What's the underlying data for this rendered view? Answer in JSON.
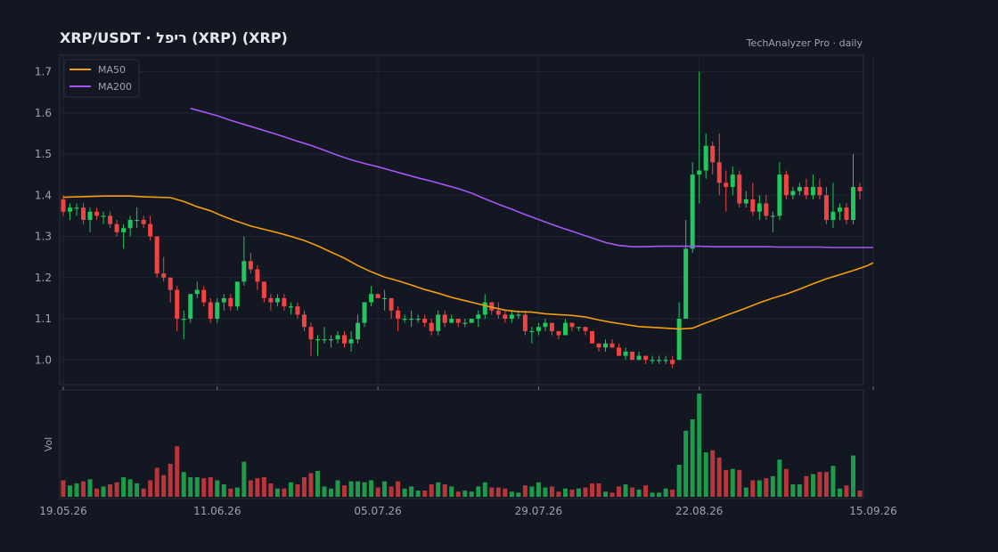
{
  "title": "XRP/USDT  ·  ריפל (XRP) (XRP)",
  "source": "TechAnalyzer Pro · daily",
  "legend": [
    {
      "label": "MA50",
      "color": "#f59e0b"
    },
    {
      "label": "MA200",
      "color": "#a855f7"
    }
  ],
  "colors": {
    "background": "#131722",
    "up": "#22c55e",
    "down": "#ef4444",
    "grid": "#1f2535",
    "text": "#9ca3af",
    "title": "#e5e7eb"
  },
  "chart_data": {
    "type": "candlestick",
    "price_axis": {
      "ylim": [
        0.94,
        1.74
      ],
      "ticks": [
        1.0,
        1.1,
        1.2,
        1.3,
        1.4,
        1.5,
        1.6,
        1.7
      ]
    },
    "volume_axis": {
      "label": "Vol",
      "ylim": [
        0,
        1
      ]
    },
    "x_ticks": [
      "19.05.26",
      "11.06.26",
      "05.07.26",
      "29.07.26",
      "22.08.26",
      "15.09.26"
    ],
    "ohlcv": [
      [
        1.39,
        1.4,
        1.35,
        1.36,
        0.16
      ],
      [
        1.36,
        1.38,
        1.34,
        1.37,
        0.11
      ],
      [
        1.37,
        1.38,
        1.35,
        1.37,
        0.13
      ],
      [
        1.37,
        1.38,
        1.33,
        1.34,
        0.15
      ],
      [
        1.34,
        1.37,
        1.31,
        1.36,
        0.17
      ],
      [
        1.36,
        1.37,
        1.34,
        1.35,
        0.08
      ],
      [
        1.35,
        1.36,
        1.33,
        1.35,
        0.1
      ],
      [
        1.35,
        1.36,
        1.32,
        1.33,
        0.12
      ],
      [
        1.33,
        1.34,
        1.3,
        1.31,
        0.14
      ],
      [
        1.31,
        1.33,
        1.27,
        1.32,
        0.19
      ],
      [
        1.32,
        1.35,
        1.3,
        1.34,
        0.17
      ],
      [
        1.34,
        1.37,
        1.32,
        1.34,
        0.13
      ],
      [
        1.34,
        1.35,
        1.32,
        1.33,
        0.08
      ],
      [
        1.33,
        1.35,
        1.29,
        1.3,
        0.16
      ],
      [
        1.3,
        1.3,
        1.2,
        1.21,
        0.28
      ],
      [
        1.21,
        1.25,
        1.19,
        1.2,
        0.21
      ],
      [
        1.2,
        1.2,
        1.14,
        1.17,
        0.32
      ],
      [
        1.17,
        1.18,
        1.07,
        1.1,
        0.49
      ],
      [
        1.1,
        1.12,
        1.05,
        1.1,
        0.24
      ],
      [
        1.1,
        1.16,
        1.09,
        1.16,
        0.19
      ],
      [
        1.16,
        1.19,
        1.15,
        1.17,
        0.19
      ],
      [
        1.17,
        1.18,
        1.13,
        1.14,
        0.18
      ],
      [
        1.14,
        1.15,
        1.09,
        1.1,
        0.19
      ],
      [
        1.1,
        1.15,
        1.09,
        1.14,
        0.16
      ],
      [
        1.14,
        1.16,
        1.12,
        1.15,
        0.12
      ],
      [
        1.15,
        1.16,
        1.12,
        1.13,
        0.08
      ],
      [
        1.13,
        1.19,
        1.12,
        1.19,
        0.09
      ],
      [
        1.19,
        1.3,
        1.18,
        1.24,
        0.34
      ],
      [
        1.24,
        1.26,
        1.21,
        1.22,
        0.16
      ],
      [
        1.22,
        1.23,
        1.17,
        1.19,
        0.18
      ],
      [
        1.19,
        1.19,
        1.14,
        1.15,
        0.19
      ],
      [
        1.15,
        1.16,
        1.12,
        1.14,
        0.13
      ],
      [
        1.14,
        1.16,
        1.13,
        1.15,
        0.08
      ],
      [
        1.15,
        1.16,
        1.12,
        1.13,
        0.08
      ],
      [
        1.13,
        1.14,
        1.11,
        1.13,
        0.14
      ],
      [
        1.13,
        1.14,
        1.1,
        1.11,
        0.12
      ],
      [
        1.11,
        1.12,
        1.07,
        1.08,
        0.19
      ],
      [
        1.08,
        1.09,
        1.01,
        1.05,
        0.23
      ],
      [
        1.05,
        1.06,
        1.01,
        1.05,
        0.25
      ],
      [
        1.05,
        1.08,
        1.04,
        1.05,
        0.1
      ],
      [
        1.05,
        1.06,
        1.03,
        1.05,
        0.08
      ],
      [
        1.05,
        1.07,
        1.04,
        1.06,
        0.16
      ],
      [
        1.06,
        1.07,
        1.03,
        1.04,
        0.11
      ],
      [
        1.04,
        1.07,
        1.02,
        1.05,
        0.15
      ],
      [
        1.05,
        1.11,
        1.04,
        1.09,
        0.15
      ],
      [
        1.09,
        1.14,
        1.08,
        1.14,
        0.14
      ],
      [
        1.14,
        1.18,
        1.13,
        1.16,
        0.16
      ],
      [
        1.16,
        1.16,
        1.15,
        1.15,
        0.09
      ],
      [
        1.15,
        1.17,
        1.12,
        1.15,
        0.15
      ],
      [
        1.15,
        1.15,
        1.1,
        1.12,
        0.1
      ],
      [
        1.12,
        1.13,
        1.07,
        1.1,
        0.15
      ],
      [
        1.1,
        1.11,
        1.09,
        1.1,
        0.08
      ],
      [
        1.1,
        1.12,
        1.08,
        1.1,
        0.1
      ],
      [
        1.1,
        1.11,
        1.09,
        1.1,
        0.06
      ],
      [
        1.1,
        1.11,
        1.08,
        1.09,
        0.06
      ],
      [
        1.09,
        1.1,
        1.06,
        1.07,
        0.12
      ],
      [
        1.07,
        1.12,
        1.06,
        1.11,
        0.14
      ],
      [
        1.11,
        1.12,
        1.08,
        1.09,
        0.12
      ],
      [
        1.09,
        1.11,
        1.09,
        1.1,
        0.1
      ],
      [
        1.1,
        1.1,
        1.08,
        1.09,
        0.05
      ],
      [
        1.09,
        1.1,
        1.08,
        1.09,
        0.06
      ],
      [
        1.09,
        1.1,
        1.09,
        1.1,
        0.05
      ],
      [
        1.1,
        1.12,
        1.08,
        1.11,
        0.1
      ],
      [
        1.11,
        1.16,
        1.1,
        1.14,
        0.14
      ],
      [
        1.14,
        1.14,
        1.11,
        1.12,
        0.09
      ],
      [
        1.12,
        1.14,
        1.1,
        1.11,
        0.09
      ],
      [
        1.11,
        1.12,
        1.09,
        1.1,
        0.08
      ],
      [
        1.1,
        1.12,
        1.09,
        1.11,
        0.05
      ],
      [
        1.11,
        1.12,
        1.1,
        1.11,
        0.04
      ],
      [
        1.11,
        1.12,
        1.06,
        1.07,
        0.11
      ],
      [
        1.07,
        1.08,
        1.04,
        1.07,
        0.1
      ],
      [
        1.07,
        1.09,
        1.06,
        1.08,
        0.14
      ],
      [
        1.08,
        1.1,
        1.07,
        1.09,
        0.09
      ],
      [
        1.09,
        1.09,
        1.06,
        1.07,
        0.1
      ],
      [
        1.07,
        1.07,
        1.05,
        1.06,
        0.05
      ],
      [
        1.06,
        1.1,
        1.06,
        1.09,
        0.08
      ],
      [
        1.09,
        1.09,
        1.07,
        1.08,
        0.07
      ],
      [
        1.08,
        1.08,
        1.07,
        1.08,
        0.08
      ],
      [
        1.08,
        1.08,
        1.06,
        1.07,
        0.09
      ],
      [
        1.07,
        1.07,
        1.04,
        1.04,
        0.13
      ],
      [
        1.04,
        1.04,
        1.02,
        1.03,
        0.13
      ],
      [
        1.03,
        1.05,
        1.02,
        1.04,
        0.05
      ],
      [
        1.04,
        1.05,
        1.03,
        1.03,
        0.04
      ],
      [
        1.03,
        1.04,
        1.01,
        1.01,
        0.1
      ],
      [
        1.01,
        1.03,
        1.0,
        1.02,
        0.12
      ],
      [
        1.02,
        1.02,
        1.0,
        1.0,
        0.09
      ],
      [
        1.0,
        1.02,
        1.0,
        1.01,
        0.07
      ],
      [
        1.01,
        1.01,
        0.99,
        1.0,
        0.11
      ],
      [
        1.0,
        1.01,
        0.99,
        1.0,
        0.04
      ],
      [
        1.0,
        1.01,
        0.99,
        1.0,
        0.04
      ],
      [
        1.0,
        1.01,
        0.99,
        1.0,
        0.08
      ],
      [
        1.0,
        1.01,
        0.98,
        0.99,
        0.07
      ],
      [
        1.0,
        1.14,
        1.0,
        1.1,
        0.31
      ],
      [
        1.1,
        1.34,
        1.1,
        1.27,
        0.64
      ],
      [
        1.27,
        1.48,
        1.26,
        1.45,
        0.75
      ],
      [
        1.45,
        1.7,
        1.38,
        1.46,
        1.0
      ],
      [
        1.46,
        1.55,
        1.44,
        1.52,
        0.43
      ],
      [
        1.52,
        1.53,
        1.45,
        1.48,
        0.45
      ],
      [
        1.48,
        1.55,
        1.4,
        1.43,
        0.38
      ],
      [
        1.43,
        1.46,
        1.36,
        1.42,
        0.26
      ],
      [
        1.42,
        1.47,
        1.4,
        1.45,
        0.27
      ],
      [
        1.45,
        1.46,
        1.37,
        1.38,
        0.26
      ],
      [
        1.38,
        1.41,
        1.37,
        1.39,
        0.09
      ],
      [
        1.39,
        1.43,
        1.35,
        1.36,
        0.16
      ],
      [
        1.36,
        1.4,
        1.34,
        1.38,
        0.16
      ],
      [
        1.38,
        1.4,
        1.34,
        1.35,
        0.18
      ],
      [
        1.35,
        1.36,
        1.31,
        1.35,
        0.2
      ],
      [
        1.35,
        1.48,
        1.34,
        1.45,
        0.36
      ],
      [
        1.45,
        1.46,
        1.39,
        1.4,
        0.27
      ],
      [
        1.4,
        1.42,
        1.39,
        1.41,
        0.12
      ],
      [
        1.41,
        1.43,
        1.4,
        1.42,
        0.12
      ],
      [
        1.42,
        1.44,
        1.39,
        1.4,
        0.2
      ],
      [
        1.4,
        1.45,
        1.39,
        1.42,
        0.22
      ],
      [
        1.42,
        1.44,
        1.39,
        1.4,
        0.24
      ],
      [
        1.4,
        1.42,
        1.33,
        1.34,
        0.24
      ],
      [
        1.34,
        1.43,
        1.32,
        1.36,
        0.3
      ],
      [
        1.36,
        1.38,
        1.34,
        1.37,
        0.08
      ],
      [
        1.37,
        1.38,
        1.33,
        1.34,
        0.11
      ],
      [
        1.34,
        1.5,
        1.33,
        1.42,
        0.4
      ],
      [
        1.42,
        1.43,
        1.39,
        1.41,
        0.06
      ]
    ],
    "ma50": [
      [
        0,
        1.395
      ],
      [
        6,
        1.398
      ],
      [
        10,
        1.398
      ],
      [
        12,
        1.396
      ],
      [
        16,
        1.394
      ],
      [
        18,
        1.385
      ],
      [
        20,
        1.372
      ],
      [
        22,
        1.362
      ],
      [
        24,
        1.348
      ],
      [
        26,
        1.336
      ],
      [
        28,
        1.325
      ],
      [
        30,
        1.317
      ],
      [
        32,
        1.309
      ],
      [
        34,
        1.3
      ],
      [
        36,
        1.29
      ],
      [
        38,
        1.277
      ],
      [
        40,
        1.262
      ],
      [
        42,
        1.247
      ],
      [
        44,
        1.229
      ],
      [
        46,
        1.214
      ],
      [
        48,
        1.201
      ],
      [
        50,
        1.192
      ],
      [
        52,
        1.182
      ],
      [
        54,
        1.171
      ],
      [
        56,
        1.162
      ],
      [
        58,
        1.152
      ],
      [
        60,
        1.144
      ],
      [
        62,
        1.136
      ],
      [
        64,
        1.128
      ],
      [
        66,
        1.121
      ],
      [
        68,
        1.117
      ],
      [
        70,
        1.116
      ],
      [
        72,
        1.112
      ],
      [
        74,
        1.11
      ],
      [
        76,
        1.108
      ],
      [
        78,
        1.104
      ],
      [
        80,
        1.097
      ],
      [
        82,
        1.091
      ],
      [
        84,
        1.086
      ],
      [
        86,
        1.081
      ],
      [
        88,
        1.079
      ],
      [
        90,
        1.077
      ],
      [
        92,
        1.075
      ],
      [
        94,
        1.077
      ],
      [
        96,
        1.09
      ],
      [
        98,
        1.102
      ],
      [
        100,
        1.114
      ],
      [
        102,
        1.126
      ],
      [
        104,
        1.139
      ],
      [
        106,
        1.15
      ],
      [
        108,
        1.16
      ],
      [
        110,
        1.172
      ],
      [
        112,
        1.185
      ],
      [
        114,
        1.197
      ],
      [
        116,
        1.207
      ],
      [
        118,
        1.217
      ],
      [
        120,
        1.228
      ],
      [
        121,
        1.236
      ]
    ],
    "ma200": [
      [
        19,
        1.611
      ],
      [
        21,
        1.602
      ],
      [
        23,
        1.593
      ],
      [
        25,
        1.582
      ],
      [
        27,
        1.572
      ],
      [
        29,
        1.562
      ],
      [
        31,
        1.552
      ],
      [
        33,
        1.542
      ],
      [
        35,
        1.531
      ],
      [
        37,
        1.521
      ],
      [
        39,
        1.509
      ],
      [
        41,
        1.497
      ],
      [
        43,
        1.486
      ],
      [
        45,
        1.477
      ],
      [
        47,
        1.469
      ],
      [
        49,
        1.46
      ],
      [
        51,
        1.451
      ],
      [
        53,
        1.442
      ],
      [
        55,
        1.434
      ],
      [
        57,
        1.425
      ],
      [
        59,
        1.416
      ],
      [
        61,
        1.405
      ],
      [
        63,
        1.391
      ],
      [
        65,
        1.378
      ],
      [
        67,
        1.366
      ],
      [
        69,
        1.353
      ],
      [
        71,
        1.341
      ],
      [
        73,
        1.329
      ],
      [
        75,
        1.318
      ],
      [
        77,
        1.307
      ],
      [
        79,
        1.296
      ],
      [
        81,
        1.285
      ],
      [
        83,
        1.278
      ],
      [
        85,
        1.275
      ],
      [
        87,
        1.275
      ],
      [
        89,
        1.276
      ],
      [
        91,
        1.276
      ],
      [
        93,
        1.276
      ],
      [
        95,
        1.276
      ],
      [
        97,
        1.275
      ],
      [
        99,
        1.275
      ],
      [
        101,
        1.275
      ],
      [
        103,
        1.275
      ],
      [
        105,
        1.275
      ],
      [
        107,
        1.274
      ],
      [
        109,
        1.274
      ],
      [
        111,
        1.274
      ],
      [
        113,
        1.274
      ],
      [
        115,
        1.273
      ],
      [
        117,
        1.273
      ],
      [
        119,
        1.273
      ],
      [
        121,
        1.273
      ]
    ]
  }
}
